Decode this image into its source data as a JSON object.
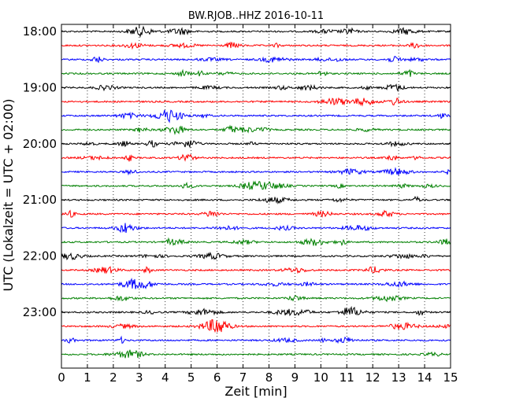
{
  "chart_data": {
    "type": "line",
    "title": "BW.RJOB..HHZ 2016-10-11",
    "xlabel": "Zeit  [min]",
    "ylabel": "UTC (Lokalzeit = UTC + 02:00)",
    "xlim": [
      0,
      15
    ],
    "x_ticks": [
      "0",
      "1",
      "2",
      "3",
      "4",
      "5",
      "6",
      "7",
      "8",
      "9",
      "10",
      "11",
      "12",
      "13",
      "14",
      "15"
    ],
    "y_ticks": [
      "18:00",
      "19:00",
      "20:00",
      "21:00",
      "22:00",
      "23:00"
    ],
    "grid": "vertical dotted",
    "traces_per_hour": 4,
    "trace_start_times": [
      "18:00",
      "18:15",
      "18:30",
      "18:45",
      "19:00",
      "19:15",
      "19:30",
      "19:45",
      "20:00",
      "20:15",
      "20:30",
      "20:45",
      "21:00",
      "21:15",
      "21:30",
      "21:45",
      "22:00",
      "22:15",
      "22:30",
      "22:45",
      "23:00",
      "23:15",
      "23:30",
      "23:45"
    ],
    "trace_colors": [
      "#000000",
      "#ff0000",
      "#0000ff",
      "#008000"
    ]
  }
}
